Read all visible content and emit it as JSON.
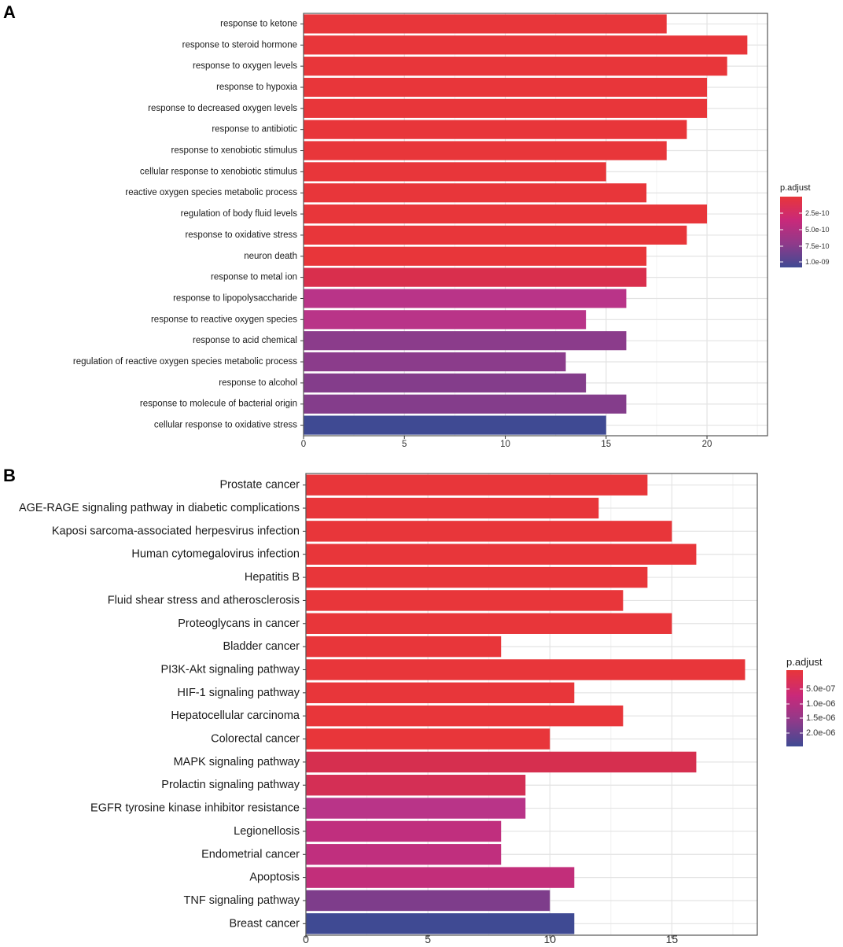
{
  "chart_data": [
    {
      "panel": "A",
      "type": "bar",
      "orientation": "horizontal",
      "categories": [
        "response to ketone",
        "response to steroid hormone",
        "response to oxygen levels",
        "response to hypoxia",
        "response to decreased oxygen levels",
        "response to antibiotic",
        "response to xenobiotic stimulus",
        "cellular response to xenobiotic stimulus",
        "reactive oxygen species metabolic process",
        "regulation of body fluid levels",
        "response to oxidative stress",
        "neuron death",
        "response to metal ion",
        "response to lipopolysaccharide",
        "response to reactive oxygen species",
        "response to acid chemical",
        "regulation of reactive oxygen species metabolic process",
        "response to alcohol",
        "response to molecule of bacterial origin",
        "cellular response to oxidative stress"
      ],
      "values": [
        18,
        22,
        21,
        20,
        20,
        19,
        18,
        15,
        17,
        20,
        19,
        17,
        17,
        16,
        14,
        16,
        13,
        14,
        16,
        15
      ],
      "colors": [
        "#e8363a",
        "#e8363a",
        "#e8363a",
        "#e8363a",
        "#e8363a",
        "#e8363a",
        "#e8363a",
        "#e8363a",
        "#e8363a",
        "#e8363a",
        "#e8363a",
        "#e8363a",
        "#d92f4d",
        "#b93488",
        "#b93488",
        "#8b3c8b",
        "#8b3c8b",
        "#843d8b",
        "#843d8b",
        "#3f4a93"
      ],
      "xlim": [
        0,
        23
      ],
      "xticks": [
        "0",
        "5",
        "10",
        "15",
        "20"
      ],
      "title": "",
      "xlabel": "",
      "ylabel": "",
      "legend": {
        "title": "p.adjust",
        "labels": [
          "2.5e-10",
          "5.0e-10",
          "7.5e-10",
          "1.0e-09"
        ],
        "colors": [
          "#e8363a",
          "#c9297a",
          "#8f3a8a",
          "#3f4a93"
        ]
      }
    },
    {
      "panel": "B",
      "type": "bar",
      "orientation": "horizontal",
      "categories": [
        "Prostate cancer",
        "AGE-RAGE signaling pathway in diabetic complications",
        "Kaposi sarcoma-associated herpesvirus infection",
        "Human cytomegalovirus infection",
        "Hepatitis B",
        "Fluid shear stress and atherosclerosis",
        "Proteoglycans in cancer",
        "Bladder cancer",
        "PI3K-Akt signaling pathway",
        "HIF-1 signaling pathway",
        "Hepatocellular carcinoma",
        "Colorectal cancer",
        "MAPK signaling pathway",
        "Prolactin signaling pathway",
        "EGFR tyrosine kinase inhibitor resistance",
        "Legionellosis",
        "Endometrial cancer",
        "Apoptosis",
        "TNF signaling pathway",
        "Breast cancer"
      ],
      "values": [
        14,
        12,
        15,
        16,
        14,
        13,
        15,
        8,
        18,
        11,
        13,
        10,
        16,
        9,
        9,
        8,
        8,
        11,
        10,
        11
      ],
      "colors": [
        "#e8363a",
        "#e8363a",
        "#e8363a",
        "#e8363a",
        "#e8363a",
        "#e8363a",
        "#e8363a",
        "#e8363a",
        "#e8363a",
        "#e8363a",
        "#e8363a",
        "#e8363a",
        "#d62f4f",
        "#d42f55",
        "#b93488",
        "#c02f7e",
        "#c02f7e",
        "#c22e7a",
        "#7e3d8b",
        "#3f4a93"
      ],
      "xlim": [
        0,
        18.5
      ],
      "xticks": [
        "0",
        "5",
        "10",
        "15"
      ],
      "title": "",
      "xlabel": "",
      "ylabel": "",
      "legend": {
        "title": "p.adjust",
        "labels": [
          "5.0e-07",
          "1.0e-06",
          "1.5e-06",
          "2.0e-06"
        ],
        "colors": [
          "#e8363a",
          "#c9297a",
          "#8f3a8a",
          "#3f4a93"
        ]
      }
    }
  ]
}
